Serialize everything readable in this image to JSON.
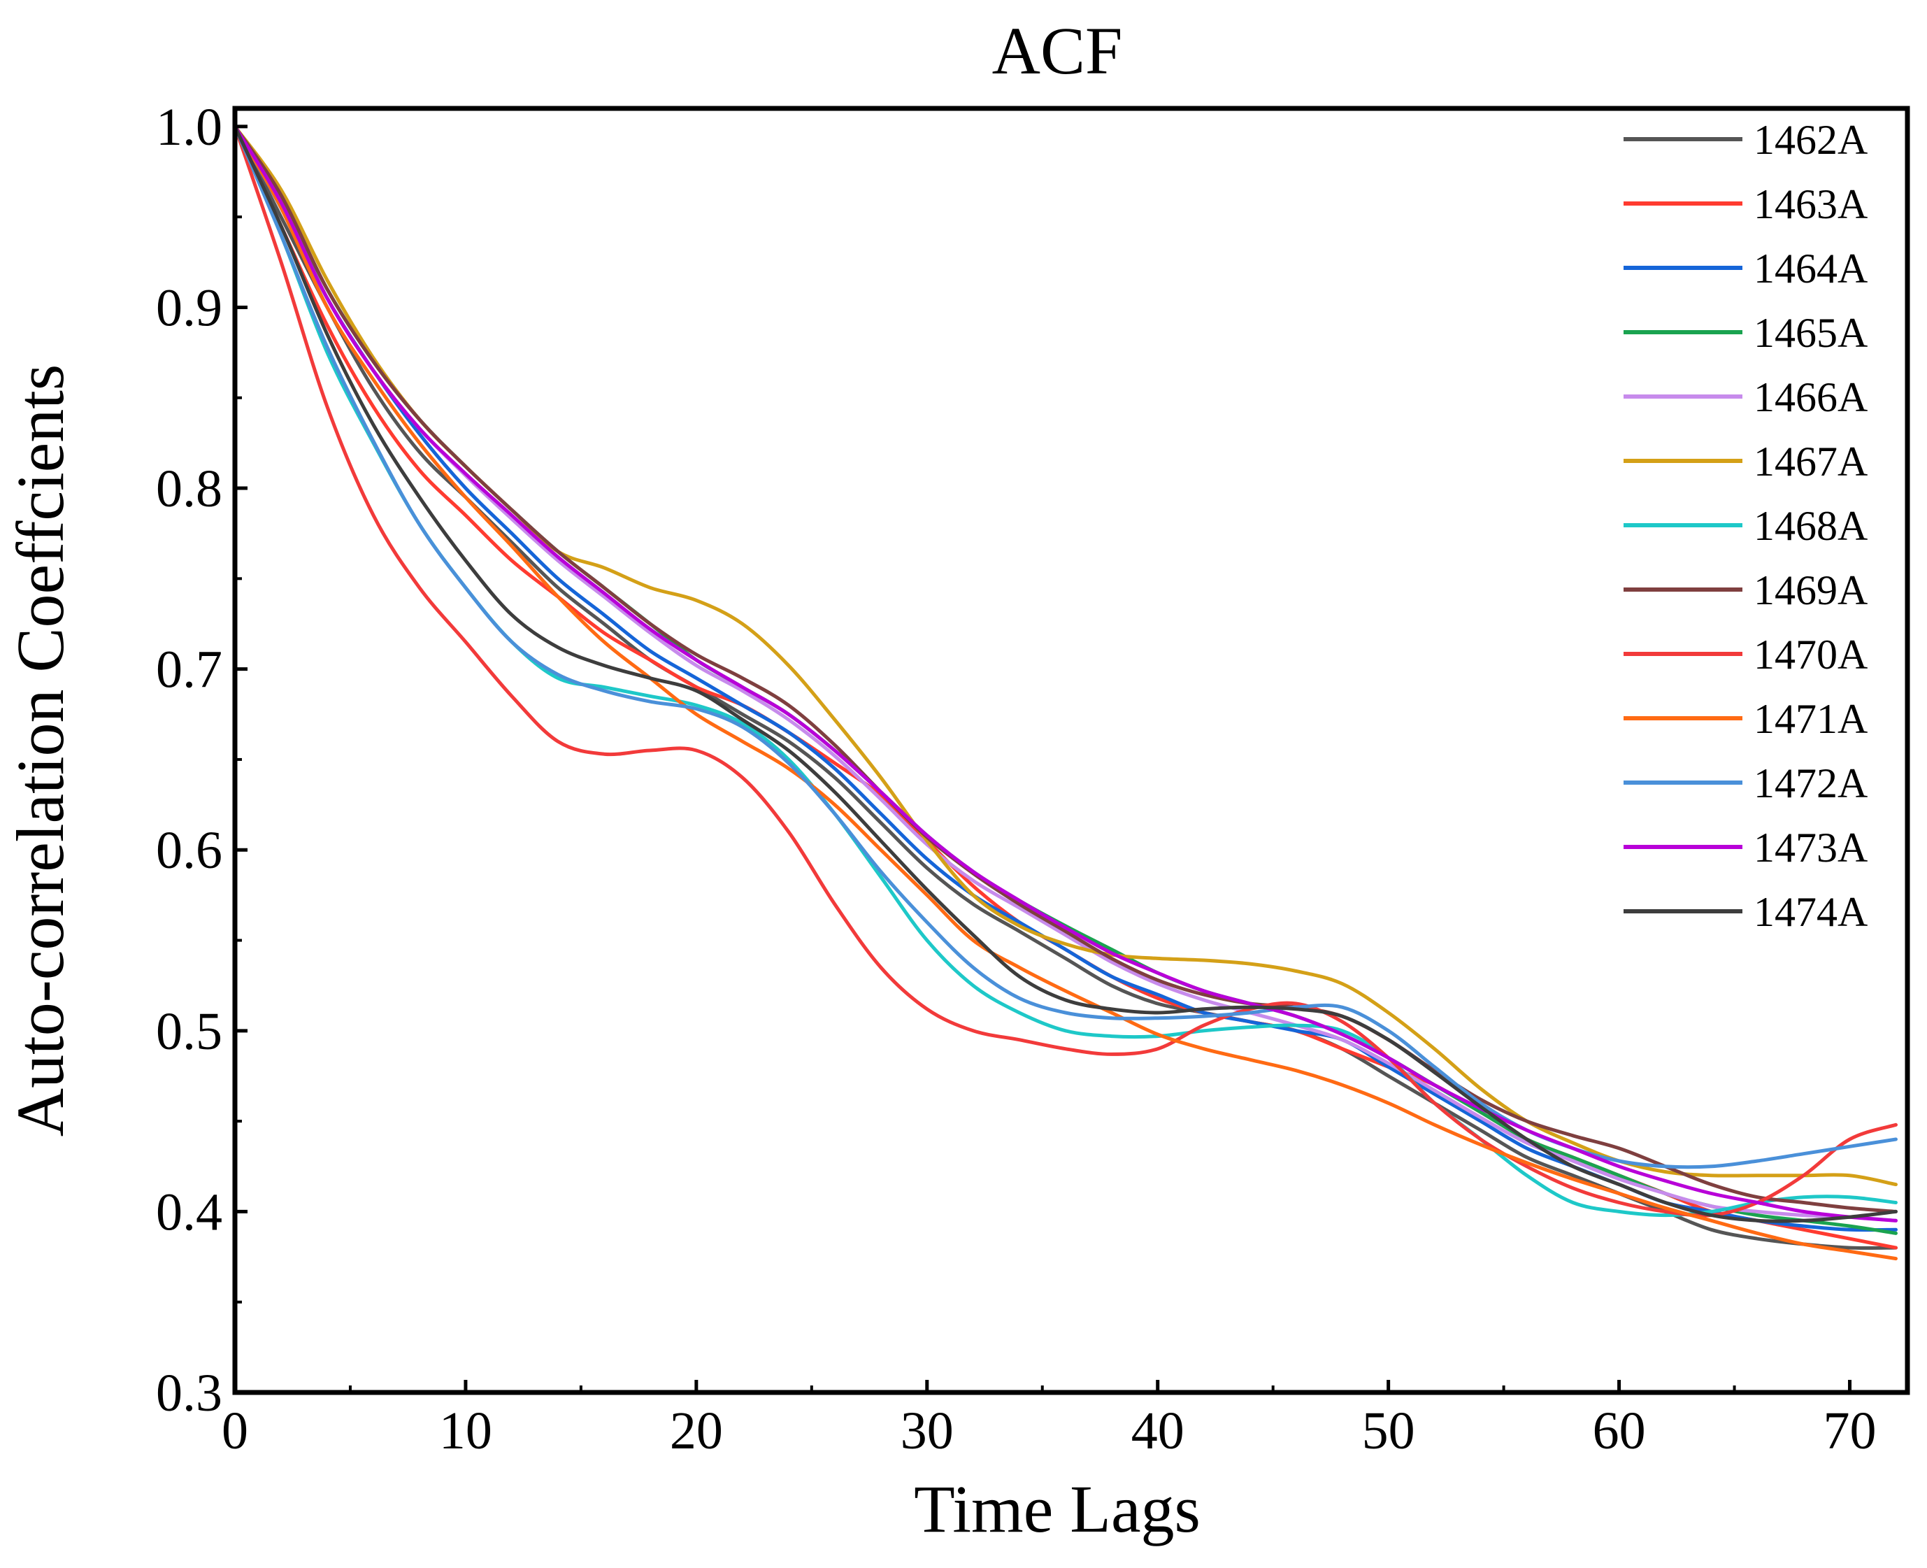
{
  "chart_data": {
    "type": "line",
    "title": "ACF",
    "xlabel": "Time Lags",
    "ylabel": "Auto-correlation Coeffcients",
    "xlim": [
      0,
      72.5
    ],
    "ylim": [
      0.3,
      1.01
    ],
    "xticks": [
      0,
      10,
      20,
      30,
      40,
      50,
      60,
      70
    ],
    "xtick_labels": [
      "0",
      "10",
      "20",
      "30",
      "40",
      "50",
      "60",
      "70"
    ],
    "yticks": [
      0.3,
      0.4,
      0.5,
      0.6,
      0.7,
      0.8,
      0.9,
      1.0
    ],
    "ytick_labels": [
      "0.3",
      "0.4",
      "0.5",
      "0.6",
      "0.7",
      "0.8",
      "0.9",
      "1.0"
    ],
    "grid": false,
    "legend_position": "top-right",
    "x": [
      0,
      2,
      4,
      6,
      8,
      10,
      12,
      14,
      16,
      18,
      20,
      22,
      24,
      26,
      28,
      30,
      32,
      34,
      36,
      38,
      40,
      42,
      44,
      46,
      48,
      50,
      52,
      54,
      56,
      58,
      60,
      62,
      64,
      66,
      68,
      70,
      72
    ],
    "series": [
      {
        "name": "1462A",
        "color": "#555555",
        "values": [
          1.0,
          0.95,
          0.9,
          0.855,
          0.82,
          0.795,
          0.77,
          0.745,
          0.725,
          0.705,
          0.69,
          0.675,
          0.66,
          0.64,
          0.615,
          0.59,
          0.57,
          0.555,
          0.54,
          0.525,
          0.515,
          0.51,
          0.505,
          0.5,
          0.49,
          0.475,
          0.46,
          0.445,
          0.43,
          0.42,
          0.41,
          0.4,
          0.39,
          0.385,
          0.382,
          0.38,
          0.38
        ]
      },
      {
        "name": "1463A",
        "color": "#ff3b30",
        "values": [
          1.0,
          0.945,
          0.89,
          0.845,
          0.81,
          0.785,
          0.76,
          0.74,
          0.72,
          0.705,
          0.69,
          0.68,
          0.665,
          0.648,
          0.63,
          0.605,
          0.58,
          0.56,
          0.545,
          0.53,
          0.518,
          0.51,
          0.505,
          0.5,
          0.49,
          0.48,
          0.47,
          0.455,
          0.44,
          0.43,
          0.42,
          0.41,
          0.4,
          0.395,
          0.39,
          0.385,
          0.38
        ]
      },
      {
        "name": "1464A",
        "color": "#1565d8",
        "values": [
          1.0,
          0.955,
          0.905,
          0.865,
          0.83,
          0.8,
          0.775,
          0.75,
          0.73,
          0.71,
          0.695,
          0.68,
          0.665,
          0.645,
          0.62,
          0.595,
          0.575,
          0.56,
          0.545,
          0.53,
          0.52,
          0.51,
          0.505,
          0.5,
          0.495,
          0.48,
          0.465,
          0.45,
          0.435,
          0.425,
          0.415,
          0.405,
          0.4,
          0.395,
          0.392,
          0.39,
          0.39
        ]
      },
      {
        "name": "1465A",
        "color": "#1aa350",
        "values": [
          1.0,
          0.96,
          0.91,
          0.87,
          0.838,
          0.812,
          0.788,
          0.765,
          0.745,
          0.725,
          0.705,
          0.69,
          0.675,
          0.655,
          0.632,
          0.608,
          0.588,
          0.572,
          0.558,
          0.545,
          0.532,
          0.522,
          0.515,
          0.508,
          0.498,
          0.485,
          0.47,
          0.455,
          0.44,
          0.43,
          0.42,
          0.41,
          0.403,
          0.398,
          0.395,
          0.392,
          0.388
        ]
      },
      {
        "name": "1466A",
        "color": "#c78bec",
        "values": [
          1.0,
          0.958,
          0.905,
          0.865,
          0.833,
          0.807,
          0.783,
          0.76,
          0.74,
          0.72,
          0.702,
          0.688,
          0.672,
          0.652,
          0.628,
          0.603,
          0.583,
          0.568,
          0.553,
          0.538,
          0.526,
          0.517,
          0.51,
          0.503,
          0.495,
          0.482,
          0.467,
          0.452,
          0.438,
          0.428,
          0.418,
          0.41,
          0.403,
          0.4,
          0.398,
          0.397,
          0.395
        ]
      },
      {
        "name": "1467A",
        "color": "#d4a017",
        "values": [
          1.0,
          0.965,
          0.915,
          0.872,
          0.838,
          0.812,
          0.788,
          0.765,
          0.756,
          0.745,
          0.738,
          0.725,
          0.702,
          0.672,
          0.64,
          0.605,
          0.575,
          0.558,
          0.548,
          0.542,
          0.54,
          0.539,
          0.537,
          0.533,
          0.526,
          0.51,
          0.49,
          0.468,
          0.45,
          0.438,
          0.428,
          0.422,
          0.42,
          0.42,
          0.42,
          0.42,
          0.415
        ]
      },
      {
        "name": "1468A",
        "color": "#1ec8c8",
        "values": [
          1.0,
          0.94,
          0.875,
          0.825,
          0.78,
          0.745,
          0.715,
          0.695,
          0.69,
          0.685,
          0.68,
          0.67,
          0.65,
          0.62,
          0.585,
          0.55,
          0.525,
          0.51,
          0.5,
          0.497,
          0.497,
          0.5,
          0.502,
          0.503,
          0.5,
          0.485,
          0.46,
          0.44,
          0.42,
          0.405,
          0.4,
          0.398,
          0.4,
          0.405,
          0.408,
          0.408,
          0.405
        ]
      },
      {
        "name": "1469A",
        "color": "#7f3f3f",
        "values": [
          1.0,
          0.962,
          0.91,
          0.87,
          0.838,
          0.812,
          0.788,
          0.765,
          0.745,
          0.725,
          0.708,
          0.695,
          0.68,
          0.658,
          0.632,
          0.607,
          0.587,
          0.57,
          0.555,
          0.54,
          0.528,
          0.52,
          0.515,
          0.513,
          0.508,
          0.495,
          0.478,
          0.462,
          0.45,
          0.442,
          0.435,
          0.425,
          0.415,
          0.408,
          0.405,
          0.402,
          0.4
        ]
      },
      {
        "name": "1470A",
        "color": "#f23a3a",
        "values": [
          1.0,
          0.925,
          0.845,
          0.785,
          0.745,
          0.715,
          0.685,
          0.66,
          0.653,
          0.655,
          0.655,
          0.64,
          0.61,
          0.57,
          0.535,
          0.512,
          0.5,
          0.495,
          0.49,
          0.487,
          0.49,
          0.503,
          0.512,
          0.515,
          0.505,
          0.485,
          0.46,
          0.44,
          0.425,
          0.413,
          0.405,
          0.4,
          0.398,
          0.405,
          0.42,
          0.44,
          0.448
        ]
      },
      {
        "name": "1471A",
        "color": "#ff6a13",
        "values": [
          1.0,
          0.955,
          0.9,
          0.86,
          0.825,
          0.795,
          0.768,
          0.74,
          0.715,
          0.695,
          0.675,
          0.66,
          0.645,
          0.625,
          0.6,
          0.575,
          0.55,
          0.535,
          0.522,
          0.51,
          0.498,
          0.49,
          0.484,
          0.478,
          0.47,
          0.46,
          0.448,
          0.437,
          0.427,
          0.418,
          0.41,
          0.402,
          0.395,
          0.388,
          0.382,
          0.378,
          0.374
        ]
      },
      {
        "name": "1472A",
        "color": "#4a90d9",
        "values": [
          1.0,
          0.94,
          0.878,
          0.826,
          0.78,
          0.745,
          0.715,
          0.697,
          0.688,
          0.682,
          0.678,
          0.668,
          0.648,
          0.62,
          0.588,
          0.56,
          0.535,
          0.518,
          0.51,
          0.507,
          0.507,
          0.508,
          0.51,
          0.513,
          0.513,
          0.5,
          0.48,
          0.46,
          0.445,
          0.435,
          0.428,
          0.425,
          0.425,
          0.428,
          0.432,
          0.436,
          0.44
        ]
      },
      {
        "name": "1473A",
        "color": "#b800d8",
        "values": [
          1.0,
          0.958,
          0.905,
          0.865,
          0.833,
          0.808,
          0.785,
          0.762,
          0.742,
          0.722,
          0.705,
          0.69,
          0.675,
          0.655,
          0.632,
          0.608,
          0.588,
          0.572,
          0.557,
          0.543,
          0.532,
          0.522,
          0.515,
          0.508,
          0.498,
          0.485,
          0.47,
          0.457,
          0.445,
          0.435,
          0.425,
          0.417,
          0.41,
          0.405,
          0.4,
          0.397,
          0.395
        ]
      },
      {
        "name": "1474A",
        "color": "#3d3d3d",
        "values": [
          1.0,
          0.945,
          0.885,
          0.835,
          0.795,
          0.76,
          0.73,
          0.712,
          0.702,
          0.695,
          0.688,
          0.672,
          0.655,
          0.632,
          0.605,
          0.578,
          0.553,
          0.53,
          0.517,
          0.512,
          0.51,
          0.512,
          0.513,
          0.512,
          0.508,
          0.495,
          0.477,
          0.458,
          0.44,
          0.425,
          0.415,
          0.405,
          0.398,
          0.395,
          0.395,
          0.397,
          0.4
        ]
      }
    ]
  }
}
